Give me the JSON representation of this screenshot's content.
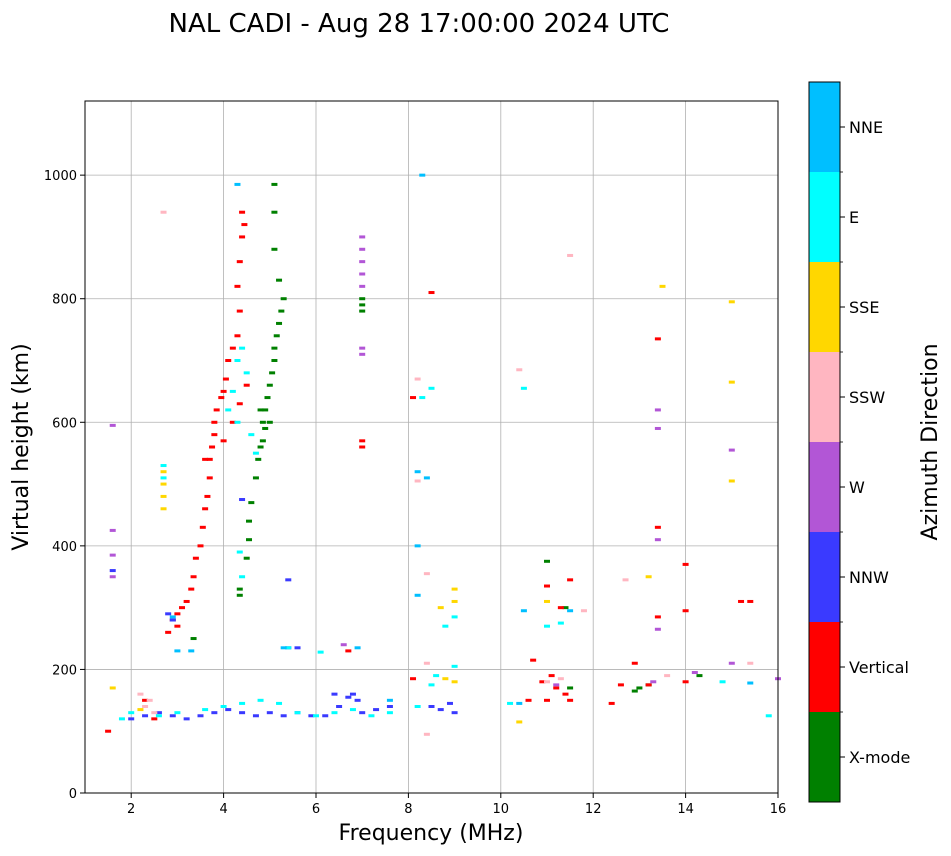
{
  "chart_data": {
    "type": "scatter",
    "title": "NAL CADI - Aug 28 17:00:00 2024 UTC",
    "xlabel": "Frequency (MHz)",
    "ylabel": "Virtual height (km)",
    "xlim": [
      1,
      16
    ],
    "ylim": [
      0,
      1120
    ],
    "xticks": [
      2,
      4,
      6,
      8,
      10,
      12,
      14,
      16
    ],
    "yticks": [
      0,
      200,
      400,
      600,
      800,
      1000
    ],
    "grid": true,
    "colorbar": {
      "label": "Azimuth Direction",
      "categories": [
        {
          "name": "X-mode",
          "color": "#008000"
        },
        {
          "name": "Vertical",
          "color": "#ff0000"
        },
        {
          "name": "NNW",
          "color": "#3a3aff"
        },
        {
          "name": "W",
          "color": "#b256d6"
        },
        {
          "name": "SSW",
          "color": "#ffb6c1"
        },
        {
          "name": "SSE",
          "color": "#ffd700"
        },
        {
          "name": "E",
          "color": "#00ffff"
        },
        {
          "name": "NNE",
          "color": "#00bfff"
        }
      ]
    },
    "series": [
      {
        "name": "X-mode",
        "points": [
          [
            4.35,
            320
          ],
          [
            4.35,
            330
          ],
          [
            4.5,
            380
          ],
          [
            4.55,
            410
          ],
          [
            4.55,
            440
          ],
          [
            4.6,
            470
          ],
          [
            4.7,
            510
          ],
          [
            4.75,
            540
          ],
          [
            4.8,
            560
          ],
          [
            4.85,
            570
          ],
          [
            4.9,
            590
          ],
          [
            4.9,
            620
          ],
          [
            4.95,
            640
          ],
          [
            5.0,
            660
          ],
          [
            5.05,
            680
          ],
          [
            5.1,
            700
          ],
          [
            5.1,
            720
          ],
          [
            5.15,
            740
          ],
          [
            5.2,
            760
          ],
          [
            5.25,
            780
          ],
          [
            5.3,
            800
          ],
          [
            5.2,
            830
          ],
          [
            5.1,
            880
          ],
          [
            5.1,
            940
          ],
          [
            5.1,
            985
          ],
          [
            5.0,
            600
          ],
          [
            4.8,
            620
          ],
          [
            4.85,
            600
          ],
          [
            7.0,
            780
          ],
          [
            7.0,
            800
          ],
          [
            7.0,
            790
          ],
          [
            3.35,
            250
          ],
          [
            12.9,
            165
          ],
          [
            13.0,
            170
          ],
          [
            13.2,
            175
          ],
          [
            11.5,
            170
          ],
          [
            11.4,
            300
          ],
          [
            11.0,
            375
          ],
          [
            14.3,
            190
          ]
        ]
      },
      {
        "name": "Vertical",
        "points": [
          [
            2.8,
            260
          ],
          [
            2.9,
            280
          ],
          [
            3.0,
            290
          ],
          [
            3.1,
            300
          ],
          [
            3.2,
            310
          ],
          [
            3.3,
            330
          ],
          [
            3.35,
            350
          ],
          [
            3.4,
            380
          ],
          [
            3.5,
            400
          ],
          [
            3.55,
            430
          ],
          [
            3.6,
            460
          ],
          [
            3.65,
            480
          ],
          [
            3.7,
            510
          ],
          [
            3.7,
            540
          ],
          [
            3.75,
            560
          ],
          [
            3.8,
            580
          ],
          [
            3.8,
            600
          ],
          [
            3.85,
            620
          ],
          [
            3.95,
            640
          ],
          [
            4.0,
            650
          ],
          [
            4.05,
            670
          ],
          [
            4.1,
            700
          ],
          [
            4.2,
            720
          ],
          [
            4.3,
            740
          ],
          [
            4.35,
            780
          ],
          [
            4.3,
            820
          ],
          [
            4.35,
            860
          ],
          [
            4.4,
            900
          ],
          [
            4.4,
            940
          ],
          [
            4.45,
            920
          ],
          [
            3.6,
            540
          ],
          [
            4.0,
            570
          ],
          [
            4.2,
            600
          ],
          [
            4.35,
            630
          ],
          [
            4.5,
            660
          ],
          [
            8.1,
            640
          ],
          [
            8.5,
            810
          ],
          [
            7.0,
            560
          ],
          [
            7.0,
            570
          ],
          [
            10.7,
            215
          ],
          [
            10.9,
            180
          ],
          [
            11.0,
            150
          ],
          [
            11.1,
            190
          ],
          [
            11.2,
            170
          ],
          [
            11.4,
            160
          ],
          [
            11.5,
            150
          ],
          [
            10.6,
            150
          ],
          [
            11.3,
            300
          ],
          [
            11.0,
            335
          ],
          [
            11.5,
            345
          ],
          [
            12.4,
            145
          ],
          [
            12.6,
            175
          ],
          [
            12.9,
            210
          ],
          [
            13.2,
            175
          ],
          [
            13.4,
            285
          ],
          [
            13.4,
            430
          ],
          [
            13.4,
            735
          ],
          [
            14.0,
            295
          ],
          [
            14.0,
            370
          ],
          [
            14.0,
            180
          ],
          [
            15.2,
            310
          ],
          [
            15.4,
            310
          ],
          [
            8.1,
            185
          ],
          [
            6.7,
            230
          ],
          [
            3.0,
            270
          ],
          [
            2.5,
            120
          ],
          [
            2.3,
            150
          ],
          [
            1.5,
            100
          ]
        ]
      },
      {
        "name": "NNW",
        "points": [
          [
            2.0,
            120
          ],
          [
            2.3,
            125
          ],
          [
            2.6,
            130
          ],
          [
            2.9,
            125
          ],
          [
            3.2,
            120
          ],
          [
            3.5,
            125
          ],
          [
            3.8,
            130
          ],
          [
            4.1,
            135
          ],
          [
            4.4,
            130
          ],
          [
            4.7,
            125
          ],
          [
            5.0,
            130
          ],
          [
            5.3,
            125
          ],
          [
            5.6,
            130
          ],
          [
            5.9,
            125
          ],
          [
            6.2,
            125
          ],
          [
            6.5,
            140
          ],
          [
            6.8,
            160
          ],
          [
            6.9,
            150
          ],
          [
            7.0,
            130
          ],
          [
            7.3,
            135
          ],
          [
            7.6,
            140
          ],
          [
            5.4,
            235
          ],
          [
            5.6,
            235
          ],
          [
            5.4,
            345
          ],
          [
            6.4,
            160
          ],
          [
            6.7,
            155
          ],
          [
            8.5,
            140
          ],
          [
            8.7,
            135
          ],
          [
            9.0,
            130
          ],
          [
            8.9,
            145
          ],
          [
            2.9,
            280
          ],
          [
            2.8,
            290
          ],
          [
            1.6,
            360
          ],
          [
            4.4,
            475
          ]
        ]
      },
      {
        "name": "W",
        "points": [
          [
            1.6,
            595
          ],
          [
            1.6,
            425
          ],
          [
            1.6,
            385
          ],
          [
            1.6,
            350
          ],
          [
            7.0,
            900
          ],
          [
            7.0,
            880
          ],
          [
            7.0,
            860
          ],
          [
            7.0,
            840
          ],
          [
            7.0,
            820
          ],
          [
            7.0,
            720
          ],
          [
            7.0,
            710
          ],
          [
            13.4,
            620
          ],
          [
            13.4,
            590
          ],
          [
            13.4,
            410
          ],
          [
            13.4,
            265
          ],
          [
            15.0,
            555
          ],
          [
            15.0,
            210
          ],
          [
            14.2,
            195
          ],
          [
            16.0,
            185
          ],
          [
            6.6,
            240
          ],
          [
            11.2,
            175
          ],
          [
            13.3,
            180
          ]
        ]
      },
      {
        "name": "SSW",
        "points": [
          [
            2.2,
            160
          ],
          [
            2.3,
            140
          ],
          [
            2.5,
            130
          ],
          [
            2.4,
            150
          ],
          [
            10.4,
            685
          ],
          [
            11.5,
            870
          ],
          [
            12.7,
            345
          ],
          [
            11.8,
            295
          ],
          [
            8.2,
            505
          ],
          [
            8.4,
            355
          ],
          [
            8.4,
            210
          ],
          [
            8.4,
            95
          ],
          [
            15.4,
            210
          ],
          [
            8.2,
            670
          ],
          [
            11.3,
            185
          ],
          [
            11.0,
            180
          ],
          [
            13.6,
            190
          ],
          [
            2.7,
            940
          ]
        ]
      },
      {
        "name": "SSE",
        "points": [
          [
            2.7,
            520
          ],
          [
            2.7,
            500
          ],
          [
            2.7,
            480
          ],
          [
            2.7,
            460
          ],
          [
            13.5,
            820
          ],
          [
            15.0,
            795
          ],
          [
            15.0,
            665
          ],
          [
            15.0,
            505
          ],
          [
            8.7,
            300
          ],
          [
            9.0,
            310
          ],
          [
            9.0,
            330
          ],
          [
            8.8,
            185
          ],
          [
            9.0,
            180
          ],
          [
            10.4,
            115
          ],
          [
            11.0,
            310
          ],
          [
            13.2,
            350
          ],
          [
            1.6,
            170
          ],
          [
            2.2,
            135
          ]
        ]
      },
      {
        "name": "E",
        "points": [
          [
            2.7,
            530
          ],
          [
            2.7,
            510
          ],
          [
            4.3,
            700
          ],
          [
            4.4,
            720
          ],
          [
            4.5,
            680
          ],
          [
            4.2,
            650
          ],
          [
            4.1,
            620
          ],
          [
            4.3,
            600
          ],
          [
            4.6,
            580
          ],
          [
            4.7,
            550
          ],
          [
            1.8,
            120
          ],
          [
            2.0,
            130
          ],
          [
            2.6,
            125
          ],
          [
            3.0,
            130
          ],
          [
            3.6,
            135
          ],
          [
            4.0,
            140
          ],
          [
            4.4,
            145
          ],
          [
            4.8,
            150
          ],
          [
            5.2,
            145
          ],
          [
            5.6,
            130
          ],
          [
            6.0,
            125
          ],
          [
            6.4,
            130
          ],
          [
            6.8,
            135
          ],
          [
            7.2,
            125
          ],
          [
            7.6,
            130
          ],
          [
            8.2,
            140
          ],
          [
            8.5,
            175
          ],
          [
            8.6,
            190
          ],
          [
            9.0,
            205
          ],
          [
            9.0,
            285
          ],
          [
            8.8,
            270
          ],
          [
            11.0,
            270
          ],
          [
            11.3,
            275
          ],
          [
            10.5,
            655
          ],
          [
            8.5,
            655
          ],
          [
            8.3,
            640
          ],
          [
            10.2,
            145
          ],
          [
            14.8,
            180
          ],
          [
            15.8,
            125
          ],
          [
            5.4,
            235
          ],
          [
            6.1,
            228
          ],
          [
            4.4,
            350
          ],
          [
            4.35,
            390
          ]
        ]
      },
      {
        "name": "NNE",
        "points": [
          [
            8.3,
            1000
          ],
          [
            4.3,
            985
          ],
          [
            8.2,
            520
          ],
          [
            8.4,
            510
          ],
          [
            8.2,
            400
          ],
          [
            8.2,
            320
          ],
          [
            10.5,
            295
          ],
          [
            10.4,
            145
          ],
          [
            15.4,
            178
          ],
          [
            11.5,
            295
          ],
          [
            6.9,
            235
          ],
          [
            5.3,
            235
          ],
          [
            3.0,
            230
          ],
          [
            3.3,
            230
          ],
          [
            2.9,
            285
          ],
          [
            7.6,
            150
          ]
        ]
      }
    ]
  }
}
